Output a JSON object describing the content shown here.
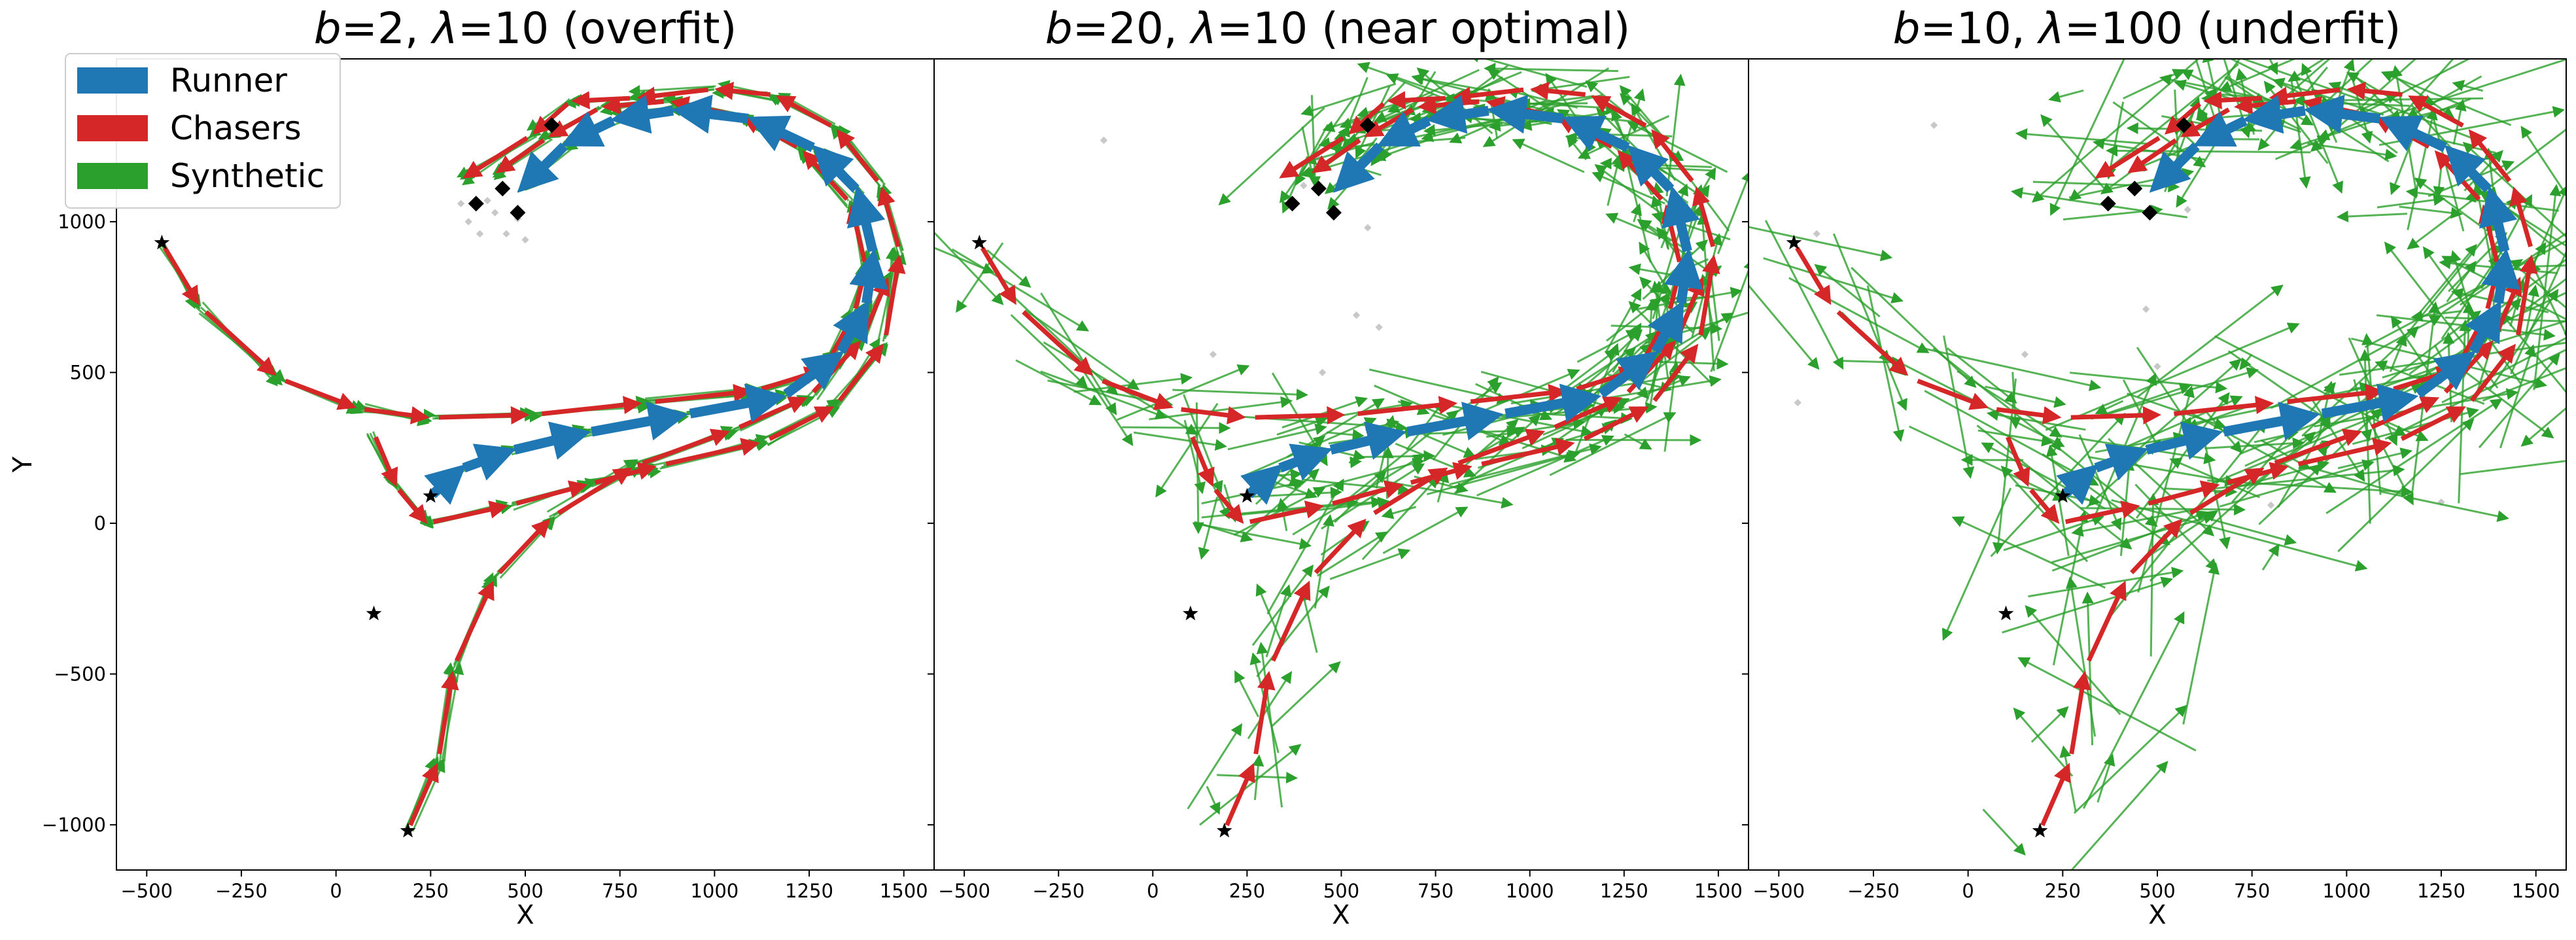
{
  "colors": {
    "runner": "#1f77b4",
    "chasers": "#d62728",
    "synthetic": "#2ca02c",
    "start_marker": "#000000",
    "waypoint_marker": "#000000",
    "faded_marker": "#c8c8c8"
  },
  "legend": {
    "runner": "Runner",
    "chasers": "Chasers",
    "synthetic": "Synthetic"
  },
  "chart_data": [
    {
      "type": "scatter",
      "title_prefix_b": "b",
      "title_b_value": "=2, ",
      "title_lambda": "λ",
      "title_rest": "=10 (overfit)",
      "xlabel": "X",
      "ylabel": "Y",
      "xlim": [
        -580,
        1580
      ],
      "ylim": [
        -1150,
        1540
      ],
      "xticks": [
        -500,
        -250,
        0,
        250,
        500,
        750,
        1000,
        1250,
        1500
      ],
      "xtick_labels": [
        "−500",
        "−250",
        "0",
        "250",
        "500",
        "750",
        "1000",
        "1250",
        "1500"
      ],
      "yticks": [
        -1000,
        -500,
        0,
        500,
        1000
      ],
      "ytick_labels": [
        "−1000",
        "−500",
        "0",
        "500",
        "1000"
      ],
      "grid": false,
      "legend_position": "top-left",
      "synthetic_spread": 12,
      "synthetic_count": 4,
      "faded_points": [
        [
          400,
          1070
        ],
        [
          350,
          1000
        ],
        [
          450,
          960
        ],
        [
          500,
          940
        ],
        [
          380,
          960
        ],
        [
          480,
          1010
        ],
        [
          330,
          1060
        ],
        [
          420,
          1030
        ]
      ]
    },
    {
      "type": "scatter",
      "title_prefix_b": "b",
      "title_b_value": "=20, ",
      "title_lambda": "λ",
      "title_rest": "=10 (near optimal)",
      "xlabel": "X",
      "ylim": [
        -1150,
        1540
      ],
      "xlim": [
        -580,
        1580
      ],
      "xticks": [
        -500,
        -250,
        0,
        250,
        500,
        750,
        1000,
        1250,
        1500
      ],
      "xtick_labels": [
        "−500",
        "−250",
        "0",
        "250",
        "500",
        "750",
        "1000",
        "1250",
        "1500"
      ],
      "yticks": [
        -1000,
        -500,
        0,
        500,
        1000
      ],
      "grid": false,
      "synthetic_spread": 110,
      "synthetic_count": 5,
      "faded_points": [
        [
          -130,
          1270
        ],
        [
          420,
          1160
        ],
        [
          400,
          1120
        ],
        [
          160,
          560
        ],
        [
          570,
          980
        ],
        [
          600,
          650
        ],
        [
          450,
          500
        ],
        [
          540,
          690
        ],
        [
          440,
          1210
        ]
      ]
    },
    {
      "type": "scatter",
      "title_prefix_b": "b",
      "title_b_value": "=10, ",
      "title_lambda": "λ",
      "title_rest": "=100 (underfit)",
      "xlabel": "X",
      "ylim": [
        -1150,
        1540
      ],
      "xlim": [
        -580,
        1580
      ],
      "xticks": [
        -500,
        -250,
        0,
        250,
        500,
        750,
        1000,
        1250,
        1500
      ],
      "xtick_labels": [
        "−500",
        "−250",
        "0",
        "250",
        "500",
        "750",
        "1000",
        "1250",
        "1500"
      ],
      "yticks": [
        -1000,
        -500,
        0,
        500,
        1000
      ],
      "grid": false,
      "synthetic_spread": 230,
      "synthetic_count": 5,
      "faded_points": [
        [
          -90,
          1320
        ],
        [
          -400,
          960
        ],
        [
          580,
          1040
        ],
        [
          150,
          560
        ],
        [
          500,
          520
        ],
        [
          470,
          710
        ],
        [
          1250,
          70
        ],
        [
          800,
          60
        ],
        [
          -450,
          400
        ]
      ]
    }
  ],
  "trajectories": {
    "runner": [
      [
        250,
        90
      ],
      [
        330,
        180
      ],
      [
        460,
        240
      ],
      [
        660,
        300
      ],
      [
        920,
        360
      ],
      [
        1180,
        420
      ],
      [
        1330,
        560
      ],
      [
        1400,
        720
      ],
      [
        1420,
        890
      ],
      [
        1380,
        1100
      ],
      [
        1270,
        1240
      ],
      [
        1100,
        1340
      ],
      [
        900,
        1370
      ],
      [
        740,
        1340
      ],
      [
        610,
        1260
      ],
      [
        490,
        1110
      ]
    ],
    "chasers": [
      [
        [
          -460,
          930
        ],
        [
          -360,
          720
        ],
        [
          -150,
          480
        ],
        [
          60,
          380
        ],
        [
          250,
          350
        ],
        [
          520,
          360
        ],
        [
          820,
          400
        ],
        [
          1110,
          440
        ],
        [
          1290,
          510
        ],
        [
          1370,
          700
        ],
        [
          1400,
          850
        ],
        [
          1360,
          1060
        ],
        [
          1230,
          1240
        ],
        [
          1070,
          1350
        ],
        [
          880,
          1400
        ],
        [
          700,
          1380
        ],
        [
          560,
          1280
        ],
        [
          420,
          1160
        ]
      ],
      [
        [
          100,
          300
        ],
        [
          160,
          120
        ],
        [
          240,
          0
        ],
        [
          460,
          60
        ],
        [
          670,
          130
        ],
        [
          850,
          190
        ],
        [
          1130,
          270
        ],
        [
          1320,
          390
        ],
        [
          1450,
          600
        ],
        [
          1490,
          900
        ],
        [
          1440,
          1120
        ],
        [
          1320,
          1310
        ],
        [
          1160,
          1420
        ],
        [
          1000,
          1440
        ],
        [
          790,
          1410
        ],
        [
          620,
          1400
        ],
        [
          520,
          1290
        ],
        [
          330,
          1140
        ]
      ],
      [
        [
          190,
          -1020
        ],
        [
          270,
          -790
        ],
        [
          310,
          -480
        ],
        [
          420,
          -180
        ],
        [
          570,
          20
        ],
        [
          790,
          190
        ],
        [
          1050,
          310
        ],
        [
          1250,
          420
        ],
        [
          1390,
          610
        ],
        [
          1460,
          820
        ]
      ]
    ],
    "start_points": [
      [
        -460,
        930
      ],
      [
        250,
        90
      ],
      [
        100,
        -300
      ],
      [
        190,
        -1020
      ]
    ],
    "waypoints": [
      [
        570,
        1320
      ],
      [
        440,
        1110
      ],
      [
        370,
        1060
      ],
      [
        480,
        1030
      ]
    ]
  }
}
